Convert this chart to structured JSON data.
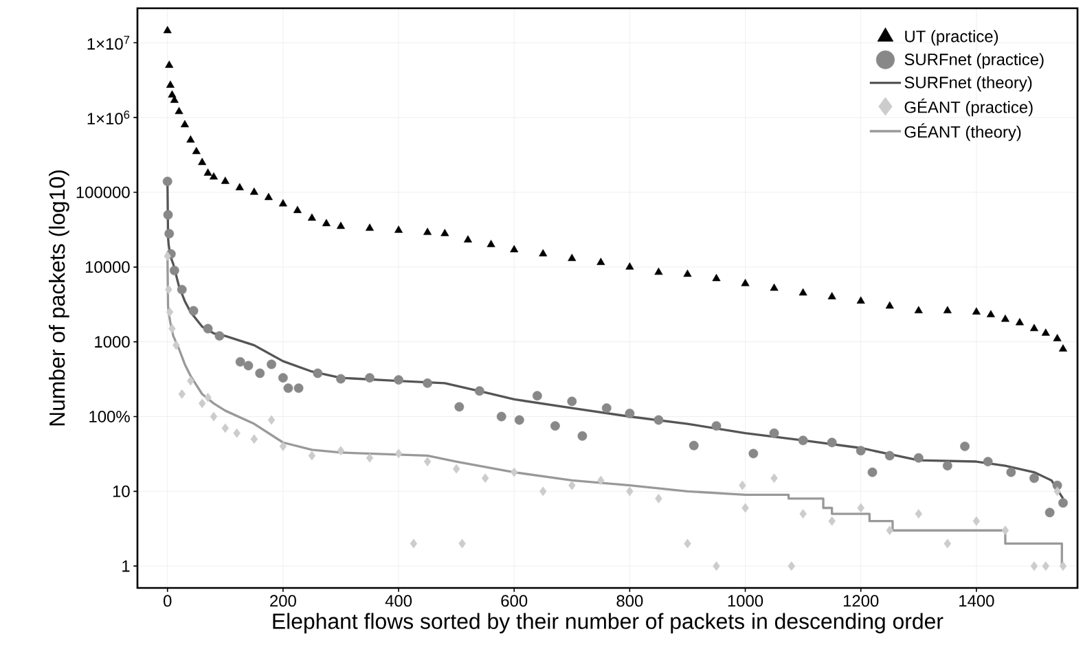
{
  "chart_data": {
    "type": "scatter",
    "xlabel": "Elephant flows sorted by their number of packets in descending order",
    "ylabel": "Number of packets (log10)",
    "log": "y",
    "grid": true,
    "legend": "top right",
    "xlim": [
      -52,
      1575
    ],
    "ylim": [
      0.51,
      29000000
    ],
    "xticks": [
      0,
      200,
      400,
      600,
      800,
      1000,
      1200,
      1400
    ],
    "yticks": [
      {
        "value": 1,
        "label": "1"
      },
      {
        "value": 10,
        "label": "10"
      },
      {
        "value": 100,
        "label": "100%"
      },
      {
        "value": 1000,
        "label": "1000"
      },
      {
        "value": 10000,
        "label": "10000"
      },
      {
        "value": 100000,
        "label": "100000"
      },
      {
        "value": 1000000,
        "label": "1×10$^{6}$"
      },
      {
        "value": 10000000,
        "label": "1×10$^{7}$"
      }
    ],
    "series": [
      {
        "name": "UT (practice)",
        "marker": "triangle",
        "color": "#000000",
        "x": [
          0,
          3,
          5,
          8,
          12,
          20,
          30,
          40,
          50,
          60,
          70,
          80,
          100,
          125,
          150,
          175,
          200,
          225,
          250,
          275,
          300,
          350,
          400,
          450,
          480,
          520,
          560,
          600,
          650,
          700,
          750,
          800,
          850,
          900,
          950,
          1000,
          1050,
          1100,
          1150,
          1200,
          1250,
          1300,
          1350,
          1400,
          1425,
          1450,
          1475,
          1500,
          1520,
          1540,
          1550
        ],
        "values": [
          14500000,
          5000000,
          2700000,
          2000000,
          1700000,
          1200000,
          800000,
          500000,
          350000,
          250000,
          180000,
          160000,
          140000,
          115000,
          100000,
          85000,
          70000,
          57000,
          45000,
          38000,
          35000,
          33000,
          31000,
          29000,
          28000,
          23000,
          20000,
          17000,
          15000,
          13000,
          11500,
          10000,
          8500,
          8000,
          7000,
          6000,
          5200,
          4500,
          4000,
          3500,
          3000,
          2600,
          2600,
          2500,
          2300,
          2000,
          1800,
          1500,
          1300,
          1100,
          800
        ]
      },
      {
        "name": "SURFnet (practice)",
        "marker": "circle",
        "color": "#888888",
        "x": [
          0,
          1,
          3,
          6,
          12,
          25,
          45,
          70,
          90,
          126,
          140,
          160,
          180,
          200,
          209,
          227,
          260,
          300,
          350,
          400,
          450,
          505,
          540,
          578,
          609,
          640,
          671,
          700,
          718,
          760,
          800,
          850,
          911,
          950,
          1014,
          1050,
          1100,
          1150,
          1200,
          1220,
          1250,
          1300,
          1350,
          1380,
          1420,
          1460,
          1500,
          1527,
          1540,
          1550
        ],
        "values": [
          140000,
          50000,
          28000,
          15000,
          9000,
          5000,
          2600,
          1500,
          1200,
          540,
          480,
          380,
          500,
          330,
          240,
          240,
          380,
          320,
          330,
          310,
          280,
          135,
          220,
          100,
          90,
          190,
          75,
          160,
          55,
          130,
          110,
          90,
          41,
          75,
          32,
          60,
          48,
          45,
          35,
          18,
          30,
          28,
          22,
          40,
          25,
          18,
          15,
          5.2,
          12,
          7
        ]
      },
      {
        "name": "SURFnet (theory)",
        "type": "line",
        "marker": "none",
        "color": "#555555",
        "x": [
          0,
          1,
          2,
          5,
          10,
          20,
          30,
          40,
          60,
          80,
          100,
          150,
          200,
          250,
          300,
          400,
          480,
          550,
          600,
          700,
          800,
          900,
          1000,
          1100,
          1200,
          1300,
          1400,
          1450,
          1500,
          1530,
          1550
        ],
        "values": [
          140000,
          25000,
          20000,
          14000,
          11000,
          5500,
          3500,
          2500,
          1600,
          1300,
          1200,
          900,
          550,
          400,
          330,
          300,
          280,
          210,
          170,
          130,
          100,
          80,
          60,
          48,
          38,
          26,
          25,
          22,
          18,
          14,
          8
        ]
      },
      {
        "name": "GÉANT (practice)",
        "marker": "diamond",
        "color": "#cccccc",
        "x": [
          0,
          2,
          4,
          8,
          15,
          25,
          40,
          60,
          70,
          80,
          100,
          120,
          150,
          180,
          200,
          250,
          300,
          350,
          400,
          426,
          450,
          500,
          510,
          550,
          600,
          650,
          700,
          750,
          800,
          850,
          900,
          950,
          995,
          1000,
          1050,
          1080,
          1100,
          1150,
          1200,
          1250,
          1300,
          1350,
          1400,
          1450,
          1500,
          1520,
          1540,
          1550
        ],
        "values": [
          14000,
          5000,
          2500,
          1500,
          900,
          200,
          300,
          150,
          180,
          100,
          70,
          60,
          50,
          90,
          40,
          30,
          35,
          28,
          32,
          2,
          25,
          20,
          2,
          15,
          18,
          10,
          12,
          14,
          10,
          8,
          2,
          1,
          12,
          6,
          15,
          1,
          5,
          4,
          6,
          3,
          5,
          2,
          4,
          3,
          1,
          1,
          10,
          1
        ]
      },
      {
        "name": "GÉANT (theory)",
        "type": "line",
        "marker": "none",
        "color": "#999999",
        "x": [
          0,
          1,
          2,
          5,
          10,
          20,
          30,
          40,
          60,
          80,
          100,
          150,
          200,
          250,
          300,
          450,
          500,
          600,
          700,
          800,
          900,
          1000,
          1075,
          1075,
          1135,
          1135,
          1150,
          1150,
          1215,
          1215,
          1255,
          1255,
          1450,
          1450,
          1548,
          1548
        ],
        "values": [
          14000,
          3000,
          2500,
          1800,
          1200,
          800,
          500,
          350,
          200,
          150,
          120,
          80,
          45,
          36,
          33,
          30,
          25,
          18,
          14,
          12,
          10,
          9,
          9,
          8,
          8,
          6,
          6,
          5,
          5,
          4,
          4,
          3,
          3,
          2,
          2,
          1
        ]
      }
    ]
  }
}
